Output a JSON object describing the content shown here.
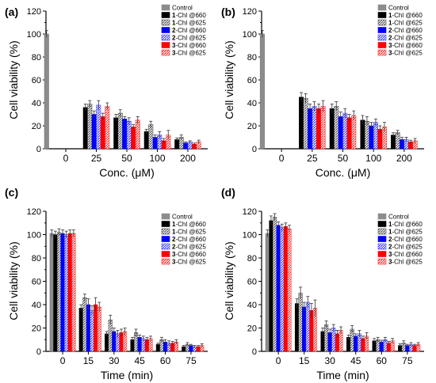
{
  "panels": [
    {
      "letter": "(a)"
    },
    {
      "letter": "(b)"
    },
    {
      "letter": "(c)"
    },
    {
      "letter": "(d)"
    }
  ],
  "legend": [
    {
      "bold": "",
      "text": "Control",
      "color": "#8c8c8c",
      "pattern": "solid"
    },
    {
      "bold": "1",
      "text": "-Chl @660",
      "color": "#000000",
      "pattern": "solid"
    },
    {
      "bold": "1",
      "text": "-Chl @625",
      "color": "#555555",
      "pattern": "hatch"
    },
    {
      "bold": "2",
      "text": "-Chl @660",
      "color": "#0000ff",
      "pattern": "solid"
    },
    {
      "bold": "2",
      "text": "-Chl @625",
      "color": "#3d3dff",
      "pattern": "hatch"
    },
    {
      "bold": "3",
      "text": "-Chl @660",
      "color": "#ff0000",
      "pattern": "solid"
    },
    {
      "bold": "3",
      "text": "-Chl @625",
      "color": "#ff2a2a",
      "pattern": "hatch"
    }
  ],
  "chart_data": [
    {
      "type": "bar",
      "panel": "(a)",
      "xlabel": "Conc. (μM)",
      "ylabel": "Cell viability (%)",
      "ylim": [
        0,
        120
      ],
      "yticks": [
        0,
        20,
        40,
        60,
        80,
        100,
        120
      ],
      "categories": [
        "0",
        "25",
        "50",
        "100",
        "200"
      ],
      "control": {
        "category": "0",
        "value": 100,
        "err": 3
      },
      "series": [
        {
          "name": "1-Chl @660",
          "values": [
            null,
            36,
            27,
            15,
            8
          ],
          "errors": [
            null,
            3,
            3,
            2,
            1.5
          ]
        },
        {
          "name": "1-Chl @625",
          "values": [
            null,
            39,
            31,
            21,
            10
          ],
          "errors": [
            null,
            3,
            3,
            3,
            2
          ]
        },
        {
          "name": "2-Chl @660",
          "values": [
            null,
            30,
            26,
            10,
            5
          ],
          "errors": [
            null,
            3,
            2,
            2,
            1
          ]
        },
        {
          "name": "2-Chl @625",
          "values": [
            null,
            38,
            24,
            12,
            6
          ],
          "errors": [
            null,
            4,
            3,
            3,
            1
          ]
        },
        {
          "name": "3-Chl @660",
          "values": [
            null,
            28,
            19,
            7,
            4
          ],
          "errors": [
            null,
            3,
            2,
            2,
            1
          ]
        },
        {
          "name": "3-Chl @625",
          "values": [
            null,
            37,
            25,
            12,
            6
          ],
          "errors": [
            null,
            3,
            3,
            4,
            1.5
          ]
        }
      ]
    },
    {
      "type": "bar",
      "panel": "(b)",
      "xlabel": "Conc. (μM)",
      "ylabel": "Cell viability (%)",
      "ylim": [
        0,
        120
      ],
      "yticks": [
        0,
        20,
        40,
        60,
        80,
        100,
        120
      ],
      "categories": [
        "0",
        "25",
        "50",
        "100",
        "200"
      ],
      "control": {
        "category": "0",
        "value": 100,
        "err": 3
      },
      "series": [
        {
          "name": "1-Chl @660",
          "values": [
            null,
            45,
            35,
            25,
            12
          ],
          "errors": [
            null,
            4,
            4,
            4,
            2
          ]
        },
        {
          "name": "1-Chl @625",
          "values": [
            null,
            44,
            37,
            24,
            14
          ],
          "errors": [
            null,
            4,
            4,
            4,
            2
          ]
        },
        {
          "name": "2-Chl @660",
          "values": [
            null,
            35,
            28,
            20,
            8
          ],
          "errors": [
            null,
            4,
            4,
            3,
            2
          ]
        },
        {
          "name": "2-Chl @625",
          "values": [
            null,
            37,
            31,
            23,
            8
          ],
          "errors": [
            null,
            4,
            4,
            3,
            2
          ]
        },
        {
          "name": "3-Chl @660",
          "values": [
            null,
            35,
            27,
            17,
            6
          ],
          "errors": [
            null,
            4,
            3,
            3,
            1.5
          ]
        },
        {
          "name": "3-Chl @625",
          "values": [
            null,
            37,
            29,
            19,
            7
          ],
          "errors": [
            null,
            5,
            4,
            4,
            2
          ]
        }
      ]
    },
    {
      "type": "bar",
      "panel": "(c)",
      "xlabel": "Time (min)",
      "ylabel": "Cell viability (%)",
      "ylim": [
        0,
        120
      ],
      "yticks": [
        0,
        20,
        40,
        60,
        80,
        100,
        120
      ],
      "categories": [
        "0",
        "15",
        "30",
        "45",
        "60",
        "75"
      ],
      "series": [
        {
          "name": "Control",
          "values": [
            101,
            null,
            null,
            null,
            null,
            null
          ],
          "errors": [
            3,
            null,
            null,
            null,
            null,
            null
          ]
        },
        {
          "name": "1-Chl @660",
          "values": [
            100,
            37,
            15,
            10,
            6,
            4
          ],
          "errors": [
            3,
            3,
            2,
            2,
            1,
            1
          ]
        },
        {
          "name": "1-Chl @625",
          "values": [
            102,
            46,
            27,
            16,
            10,
            6
          ],
          "errors": [
            3,
            3,
            4,
            3,
            2,
            1.5
          ]
        },
        {
          "name": "2-Chl @660",
          "values": [
            101,
            40,
            17,
            12,
            8,
            5
          ],
          "errors": [
            3,
            5,
            3,
            2,
            2,
            1
          ]
        },
        {
          "name": "2-Chl @625",
          "values": [
            100,
            35,
            15,
            11,
            7,
            4
          ],
          "errors": [
            3,
            4,
            3,
            2,
            2,
            1
          ]
        },
        {
          "name": "3-Chl @660",
          "values": [
            101,
            40,
            16,
            10,
            7,
            4
          ],
          "errors": [
            3,
            6,
            3,
            2,
            1.5,
            1
          ]
        },
        {
          "name": "3-Chl @625",
          "values": [
            101,
            38,
            17,
            11,
            8,
            5
          ],
          "errors": [
            3,
            4,
            3,
            2,
            2,
            1.5
          ]
        }
      ]
    },
    {
      "type": "bar",
      "panel": "(d)",
      "xlabel": "Time (min)",
      "ylabel": "Cell viability (%)",
      "ylim": [
        0,
        120
      ],
      "yticks": [
        0,
        20,
        40,
        60,
        80,
        100,
        120
      ],
      "categories": [
        "0",
        "15",
        "30",
        "45",
        "60",
        "75"
      ],
      "series": [
        {
          "name": "Control",
          "values": [
            101,
            null,
            null,
            null,
            null,
            null
          ],
          "errors": [
            3,
            null,
            null,
            null,
            null,
            null
          ]
        },
        {
          "name": "1-Chl @660",
          "values": [
            112,
            41,
            17,
            12,
            9,
            5
          ],
          "errors": [
            4,
            4,
            3,
            2,
            2,
            1.5
          ]
        },
        {
          "name": "1-Chl @625",
          "values": [
            115,
            50,
            23,
            19,
            10,
            7
          ],
          "errors": [
            3,
            5,
            3,
            3,
            2,
            2
          ]
        },
        {
          "name": "2-Chl @660",
          "values": [
            108,
            38,
            16,
            13,
            8,
            5
          ],
          "errors": [
            3,
            4,
            3,
            2,
            1.5,
            1
          ]
        },
        {
          "name": "2-Chl @625",
          "values": [
            106,
            42,
            20,
            15,
            10,
            6
          ],
          "errors": [
            3,
            5,
            3,
            3,
            2,
            1.5
          ]
        },
        {
          "name": "3-Chl @660",
          "values": [
            107,
            35,
            15,
            11,
            7,
            5
          ],
          "errors": [
            3,
            6,
            3,
            2,
            1.5,
            1
          ]
        },
        {
          "name": "3-Chl @625",
          "values": [
            105,
            37,
            18,
            13,
            9,
            6
          ],
          "errors": [
            3,
            7,
            3,
            3,
            2,
            1.5
          ]
        }
      ]
    }
  ]
}
